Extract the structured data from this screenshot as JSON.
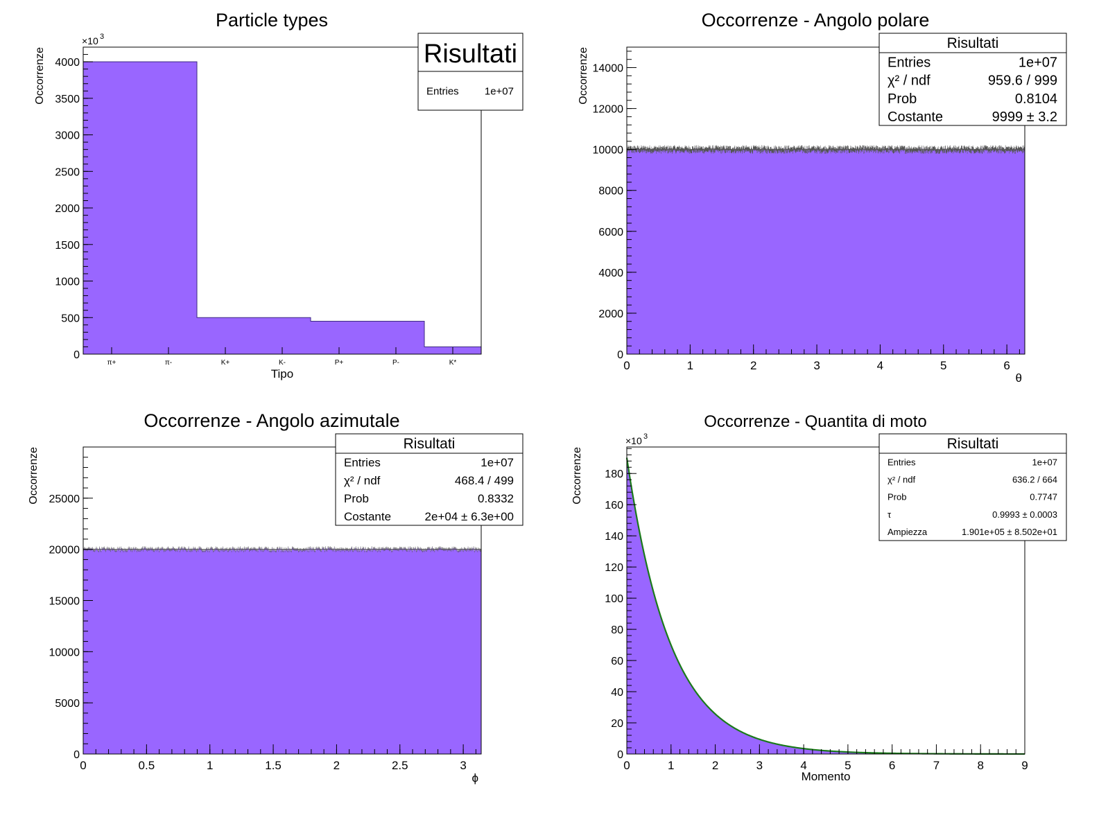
{
  "colors": {
    "fill": "#9966ff",
    "fit_line": "#1a7a1a",
    "frame": "#000000",
    "errbar": "#555555"
  },
  "chart_data": [
    {
      "type": "bar",
      "title": "Particle types",
      "xlabel": "Tipo",
      "ylabel": "Occorrenze",
      "y_multiplier": "×10",
      "y_multiplier_exp": "3",
      "ylim": [
        0,
        4200
      ],
      "yticks": [
        0,
        500,
        1000,
        1500,
        2000,
        2500,
        3000,
        3500,
        4000
      ],
      "categories": [
        "π+",
        "π-",
        "K+",
        "K-",
        "P+",
        "P-",
        "K*"
      ],
      "values": [
        4000,
        4000,
        500,
        500,
        450,
        450,
        100
      ],
      "stats": {
        "title": "Risultati",
        "rows": [
          {
            "label": "Entries",
            "value": "1e+07"
          }
        ]
      }
    },
    {
      "type": "bar",
      "title": "Occorrenze - Angolo polare",
      "xlabel": "θ",
      "ylabel": "Occorrenze",
      "xlim": [
        0,
        6.2832
      ],
      "xticks": [
        0,
        1,
        2,
        3,
        4,
        5,
        6
      ],
      "ylim": [
        0,
        15000
      ],
      "yticks": [
        0,
        2000,
        4000,
        6000,
        8000,
        10000,
        12000,
        14000
      ],
      "bins": 1000,
      "level": 9999,
      "stats": {
        "title": "Risultati",
        "rows": [
          {
            "label": "Entries",
            "value": "1e+07"
          },
          {
            "label": "χ² / ndf",
            "value": "959.6 / 999"
          },
          {
            "label": "Prob",
            "value": "0.8104"
          },
          {
            "label": "Costante",
            "value": "9999   ± 3.2"
          }
        ]
      }
    },
    {
      "type": "bar",
      "title": "Occorrenze - Angolo azimutale",
      "xlabel": "ϕ",
      "ylabel": "Occorrenze",
      "xlim": [
        0,
        3.1416
      ],
      "xticks": [
        0,
        0.5,
        1,
        1.5,
        2,
        2.5,
        3
      ],
      "xtick_labels": [
        "0",
        "0.5",
        "1",
        "1.5",
        "2",
        "2.5",
        "3"
      ],
      "ylim": [
        0,
        30000
      ],
      "yticks": [
        0,
        5000,
        10000,
        15000,
        20000,
        25000
      ],
      "bins": 500,
      "level": 20000,
      "stats": {
        "title": "Risultati",
        "rows": [
          {
            "label": "Entries",
            "value": "1e+07"
          },
          {
            "label": "χ² / ndf",
            "value": "468.4 / 499"
          },
          {
            "label": "Prob",
            "value": "0.8332"
          },
          {
            "label": "Costante",
            "value": "2e+04   ± 6.3e+00"
          }
        ]
      }
    },
    {
      "type": "area",
      "title": "Occorrenze - Quantita di moto",
      "xlabel": "Momento",
      "ylabel": "Occorrenze",
      "y_multiplier": "×10",
      "y_multiplier_exp": "3",
      "xlim": [
        0,
        9
      ],
      "xticks": [
        0,
        1,
        2,
        3,
        4,
        5,
        6,
        7,
        8,
        9
      ],
      "ylim": [
        0,
        197
      ],
      "yticks": [
        0,
        20,
        40,
        60,
        80,
        100,
        120,
        140,
        160,
        180
      ],
      "amplitude": 190.1,
      "tau": 0.9993,
      "stats": {
        "title": "Risultati",
        "rows": [
          {
            "label": "Entries",
            "value": "1e+07"
          },
          {
            "label": "χ² / ndf",
            "value": "636.2 / 664"
          },
          {
            "label": "Prob",
            "value": "0.7747"
          },
          {
            "label": "τ",
            "value": "0.9993   ± 0.0003"
          },
          {
            "label": "Ampiezza",
            "value": "1.901e+05   ± 8.502e+01"
          }
        ]
      }
    }
  ]
}
